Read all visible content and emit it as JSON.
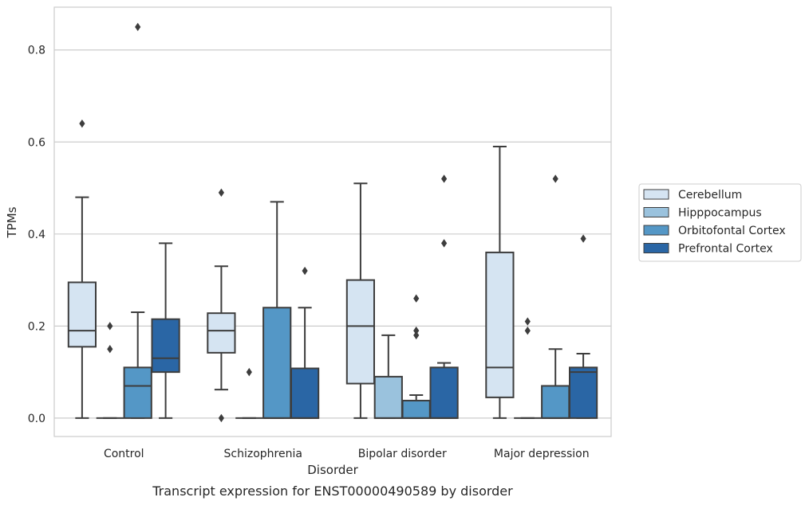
{
  "chart_data": {
    "type": "box",
    "title": "",
    "caption": "Transcript expression for ENST00000490589 by disorder",
    "xlabel": "Disorder",
    "ylabel": "TPMs",
    "ylim": [
      -0.04,
      0.893
    ],
    "yticks": [
      0.0,
      0.2,
      0.4,
      0.6,
      0.8
    ],
    "ytick_labels": [
      "0.0",
      "0.2",
      "0.4",
      "0.6",
      "0.8"
    ],
    "grid": "horizontal",
    "legend_position": "right",
    "categories": [
      "Control",
      "Schizophrenia",
      "Bipolar disorder",
      "Major depression"
    ],
    "series": [
      {
        "name": "Cerebellum",
        "color": "#d5e4f2",
        "boxes": [
          {
            "q1": 0.155,
            "median": 0.19,
            "q3": 0.295,
            "whisker_low": 0.0,
            "whisker_high": 0.48,
            "outliers": [
              0.64
            ]
          },
          {
            "q1": 0.142,
            "median": 0.19,
            "q3": 0.228,
            "whisker_low": 0.062,
            "whisker_high": 0.33,
            "outliers": [
              0.0,
              0.49
            ]
          },
          {
            "q1": 0.075,
            "median": 0.2,
            "q3": 0.3,
            "whisker_low": 0.0,
            "whisker_high": 0.51,
            "outliers": []
          },
          {
            "q1": 0.045,
            "median": 0.11,
            "q3": 0.36,
            "whisker_low": 0.0,
            "whisker_high": 0.59,
            "outliers": []
          }
        ]
      },
      {
        "name": "Hipppocampus",
        "color": "#9ac2dd",
        "boxes": [
          {
            "q1": 0.0,
            "median": 0.0,
            "q3": 0.0,
            "whisker_low": 0.0,
            "whisker_high": 0.0,
            "outliers": [
              0.15,
              0.2
            ]
          },
          {
            "q1": 0.0,
            "median": 0.0,
            "q3": 0.0,
            "whisker_low": 0.0,
            "whisker_high": 0.0,
            "outliers": [
              0.1
            ]
          },
          {
            "q1": 0.0,
            "median": 0.0,
            "q3": 0.09,
            "whisker_low": 0.0,
            "whisker_high": 0.18,
            "outliers": []
          },
          {
            "q1": 0.0,
            "median": 0.0,
            "q3": 0.0,
            "whisker_low": 0.0,
            "whisker_high": 0.0,
            "outliers": [
              0.19,
              0.21
            ]
          }
        ]
      },
      {
        "name": "Orbitofontal Cortex",
        "color": "#5497c6",
        "boxes": [
          {
            "q1": 0.0,
            "median": 0.07,
            "q3": 0.11,
            "whisker_low": 0.0,
            "whisker_high": 0.23,
            "outliers": [
              0.85
            ]
          },
          {
            "q1": 0.0,
            "median": 0.0,
            "q3": 0.24,
            "whisker_low": 0.0,
            "whisker_high": 0.47,
            "outliers": []
          },
          {
            "q1": 0.0,
            "median": 0.0,
            "q3": 0.038,
            "whisker_low": 0.0,
            "whisker_high": 0.05,
            "outliers": [
              0.18,
              0.19,
              0.26
            ]
          },
          {
            "q1": 0.0,
            "median": 0.0,
            "q3": 0.07,
            "whisker_low": 0.0,
            "whisker_high": 0.15,
            "outliers": [
              0.52
            ]
          }
        ]
      },
      {
        "name": "Prefrontal Cortex",
        "color": "#2a66a5",
        "boxes": [
          {
            "q1": 0.1,
            "median": 0.13,
            "q3": 0.215,
            "whisker_low": 0.0,
            "whisker_high": 0.38,
            "outliers": []
          },
          {
            "q1": 0.0,
            "median": 0.0,
            "q3": 0.108,
            "whisker_low": 0.0,
            "whisker_high": 0.24,
            "outliers": [
              0.32
            ]
          },
          {
            "q1": 0.0,
            "median": 0.0,
            "q3": 0.11,
            "whisker_low": 0.0,
            "whisker_high": 0.12,
            "outliers": [
              0.38,
              0.52
            ]
          },
          {
            "q1": 0.0,
            "median": 0.1,
            "q3": 0.11,
            "whisker_low": 0.0,
            "whisker_high": 0.14,
            "outliers": [
              0.39
            ]
          }
        ]
      }
    ]
  }
}
